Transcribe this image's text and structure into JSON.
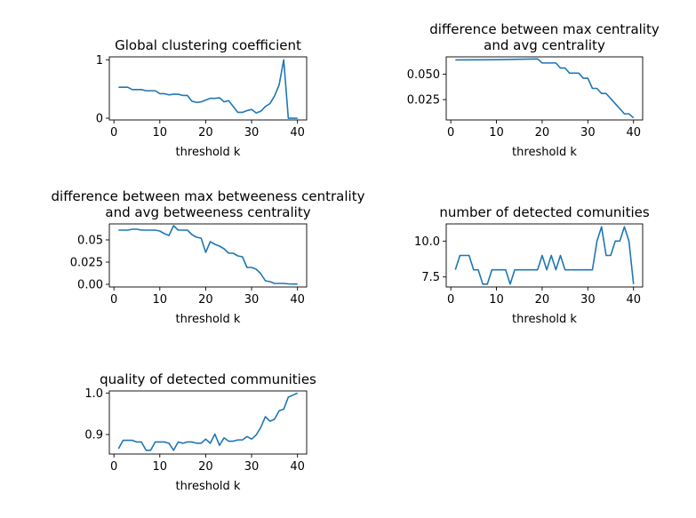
{
  "chart_data": [
    {
      "type": "line",
      "title": [
        "Global clustering coefficient"
      ],
      "xlabel": "threshold k",
      "ylabel": "",
      "xlim": [
        -1,
        42
      ],
      "ylim": [
        -0.03,
        1.05
      ],
      "xticks": [
        0,
        10,
        20,
        30,
        40
      ],
      "xtick_labels": [
        "0",
        "10",
        "20",
        "30",
        "40"
      ],
      "yticks": [
        0,
        1
      ],
      "ytick_labels": [
        "0",
        "1"
      ],
      "color": "#1f77b4",
      "series": [
        {
          "x": [
            1,
            2,
            3,
            4,
            5,
            6,
            7,
            8,
            9,
            10,
            11,
            12,
            13,
            14,
            15,
            16,
            17,
            18,
            19,
            20,
            21,
            22,
            23,
            24,
            25,
            26,
            27,
            28,
            29,
            30,
            31,
            32,
            33,
            34,
            35,
            36,
            37,
            38,
            39,
            40
          ],
          "values": [
            0.53,
            0.53,
            0.53,
            0.49,
            0.49,
            0.49,
            0.47,
            0.47,
            0.47,
            0.42,
            0.42,
            0.4,
            0.41,
            0.41,
            0.39,
            0.39,
            0.29,
            0.27,
            0.28,
            0.31,
            0.34,
            0.34,
            0.35,
            0.28,
            0.3,
            0.2,
            0.1,
            0.1,
            0.13,
            0.15,
            0.09,
            0.12,
            0.2,
            0.25,
            0.38,
            0.57,
            1.0,
            0.0,
            0.0,
            0.0
          ]
        }
      ]
    },
    {
      "type": "line",
      "title": [
        "difference between max centrality",
        "and avg centrality"
      ],
      "xlabel": "threshold k",
      "ylabel": "",
      "xlim": [
        -1,
        42
      ],
      "ylim": [
        0.005,
        0.067
      ],
      "xticks": [
        0,
        10,
        20,
        30,
        40
      ],
      "xtick_labels": [
        "0",
        "10",
        "20",
        "30",
        "40"
      ],
      "yticks": [
        0.025,
        0.05
      ],
      "ytick_labels": [
        "0.025",
        "0.050"
      ],
      "color": "#1f77b4",
      "series": [
        {
          "x": [
            1,
            10,
            19,
            20,
            21,
            22,
            23,
            24,
            25,
            26,
            27,
            28,
            29,
            30,
            31,
            32,
            33,
            34,
            35,
            36,
            37,
            38,
            39,
            40
          ],
          "values": [
            0.064,
            0.0642,
            0.065,
            0.061,
            0.061,
            0.061,
            0.061,
            0.056,
            0.056,
            0.051,
            0.051,
            0.051,
            0.046,
            0.046,
            0.036,
            0.036,
            0.031,
            0.031,
            0.026,
            0.021,
            0.016,
            0.011,
            0.011,
            0.007
          ]
        }
      ]
    },
    {
      "type": "line",
      "title": [
        "difference between max betweeness centrality",
        "and avg betweeness centrality"
      ],
      "xlabel": "threshold k",
      "ylabel": "",
      "xlim": [
        -1,
        42
      ],
      "ylim": [
        -0.003,
        0.068
      ],
      "xticks": [
        0,
        10,
        20,
        30,
        40
      ],
      "xtick_labels": [
        "0",
        "10",
        "20",
        "30",
        "40"
      ],
      "yticks": [
        0,
        0.025,
        0.05
      ],
      "ytick_labels": [
        "0.00",
        "0.025",
        "0.05"
      ],
      "color": "#1f77b4",
      "series": [
        {
          "x": [
            1,
            2,
            3,
            4,
            5,
            6,
            7,
            8,
            9,
            10,
            11,
            12,
            13,
            14,
            15,
            16,
            17,
            18,
            19,
            20,
            21,
            22,
            23,
            24,
            25,
            26,
            27,
            28,
            29,
            30,
            31,
            32,
            33,
            34,
            35,
            36,
            37,
            38,
            39,
            40
          ],
          "values": [
            0.061,
            0.061,
            0.061,
            0.062,
            0.062,
            0.061,
            0.061,
            0.061,
            0.061,
            0.06,
            0.057,
            0.055,
            0.066,
            0.061,
            0.061,
            0.061,
            0.056,
            0.053,
            0.052,
            0.036,
            0.048,
            0.045,
            0.043,
            0.04,
            0.035,
            0.035,
            0.032,
            0.031,
            0.019,
            0.019,
            0.017,
            0.012,
            0.004,
            0.003,
            0.001,
            0.001,
            0.001,
            0.0005,
            0.0003,
            0.0003
          ]
        }
      ]
    },
    {
      "type": "line",
      "title": [
        "number of detected comunities"
      ],
      "xlabel": "threshold k",
      "ylabel": "",
      "xlim": [
        -1,
        42
      ],
      "ylim": [
        6.8,
        11.2
      ],
      "xticks": [
        0,
        10,
        20,
        30,
        40
      ],
      "xtick_labels": [
        "0",
        "10",
        "20",
        "30",
        "40"
      ],
      "yticks": [
        7.5,
        10
      ],
      "ytick_labels": [
        "7.5",
        "10.0"
      ],
      "color": "#1f77b4",
      "series": [
        {
          "x": [
            1,
            2,
            3,
            4,
            5,
            6,
            7,
            8,
            9,
            10,
            11,
            12,
            13,
            14,
            15,
            16,
            17,
            18,
            19,
            20,
            21,
            22,
            23,
            24,
            25,
            26,
            27,
            28,
            29,
            30,
            31,
            32,
            33,
            34,
            35,
            36,
            37,
            38,
            39,
            40
          ],
          "values": [
            8,
            9,
            9,
            9,
            8,
            8,
            7,
            7,
            8,
            8,
            8,
            8,
            7,
            8,
            8,
            8,
            8,
            8,
            8,
            9,
            8,
            9,
            8,
            9,
            8,
            8,
            8,
            8,
            8,
            8,
            8,
            10,
            11,
            9,
            9,
            10,
            10,
            11,
            10,
            7
          ]
        }
      ]
    },
    {
      "type": "line",
      "title": [
        "quality of detected communities"
      ],
      "xlabel": "threshold k",
      "ylabel": "",
      "xlim": [
        -1,
        42
      ],
      "ylim": [
        0.853,
        1.005
      ],
      "xticks": [
        0,
        10,
        20,
        30,
        40
      ],
      "xtick_labels": [
        "0",
        "10",
        "20",
        "30",
        "40"
      ],
      "yticks": [
        0.9,
        1.0
      ],
      "ytick_labels": [
        "0.9",
        "1.0"
      ],
      "color": "#1f77b4",
      "series": [
        {
          "x": [
            1,
            2,
            3,
            4,
            5,
            6,
            7,
            8,
            9,
            10,
            11,
            12,
            13,
            14,
            15,
            16,
            17,
            18,
            19,
            20,
            21,
            22,
            23,
            24,
            25,
            26,
            27,
            28,
            29,
            30,
            31,
            32,
            33,
            34,
            35,
            36,
            37,
            38,
            39,
            40
          ],
          "values": [
            0.866,
            0.886,
            0.886,
            0.886,
            0.882,
            0.882,
            0.862,
            0.862,
            0.882,
            0.882,
            0.882,
            0.879,
            0.862,
            0.882,
            0.879,
            0.882,
            0.882,
            0.879,
            0.879,
            0.889,
            0.879,
            0.901,
            0.874,
            0.892,
            0.884,
            0.884,
            0.887,
            0.887,
            0.895,
            0.889,
            0.899,
            0.917,
            0.943,
            0.932,
            0.937,
            0.957,
            0.961,
            0.99,
            0.995,
            1.0
          ]
        }
      ]
    }
  ]
}
